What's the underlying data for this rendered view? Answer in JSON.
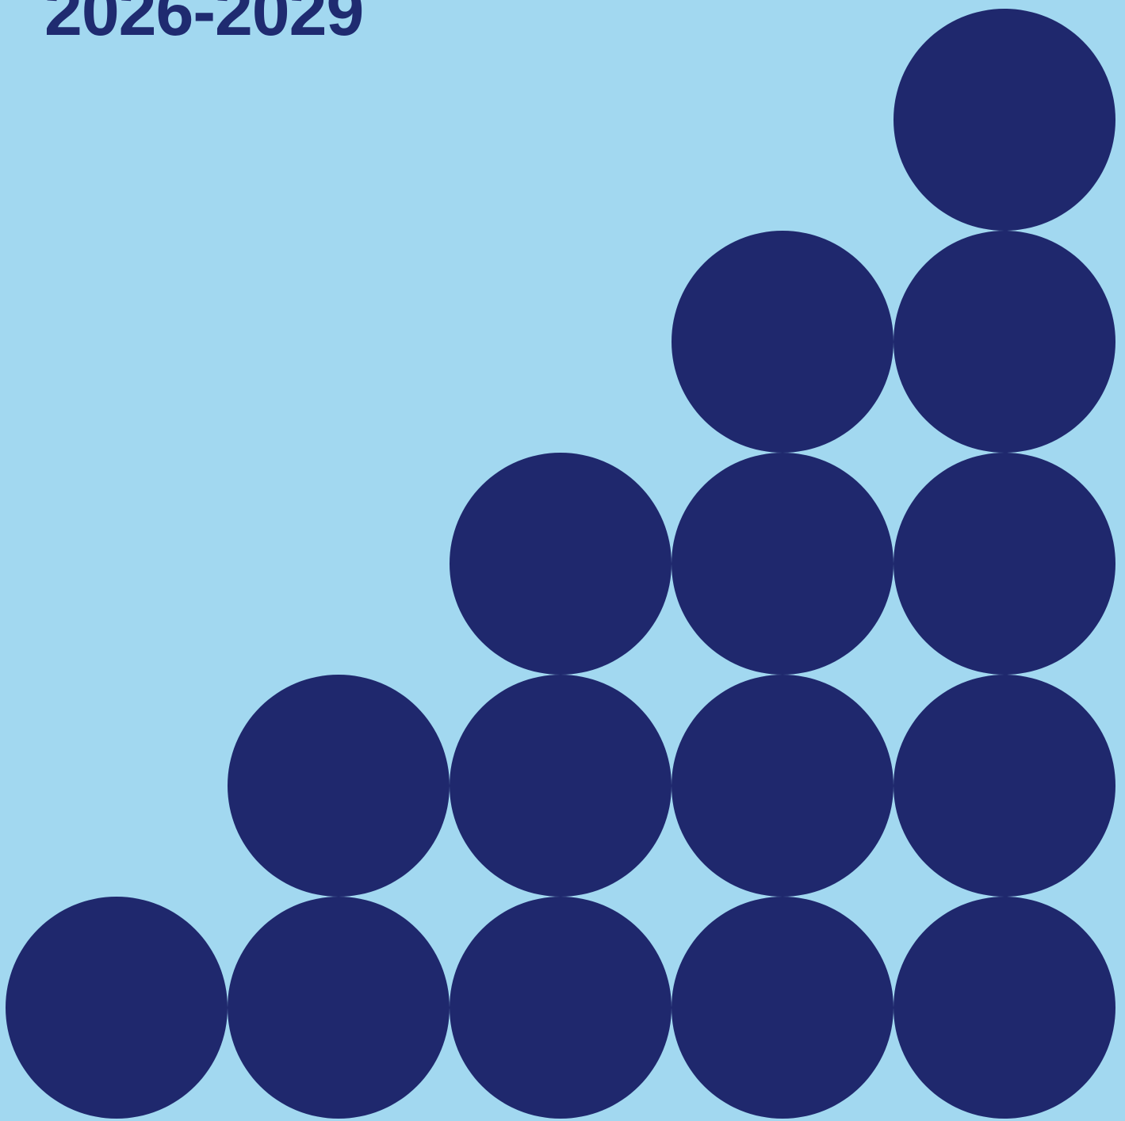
{
  "cover": {
    "years": "2026-2029"
  },
  "pattern": {
    "rows": [
      1,
      2,
      3,
      4,
      5
    ],
    "dot_color": "#1f286d",
    "background_color": "#a2d8f0"
  }
}
